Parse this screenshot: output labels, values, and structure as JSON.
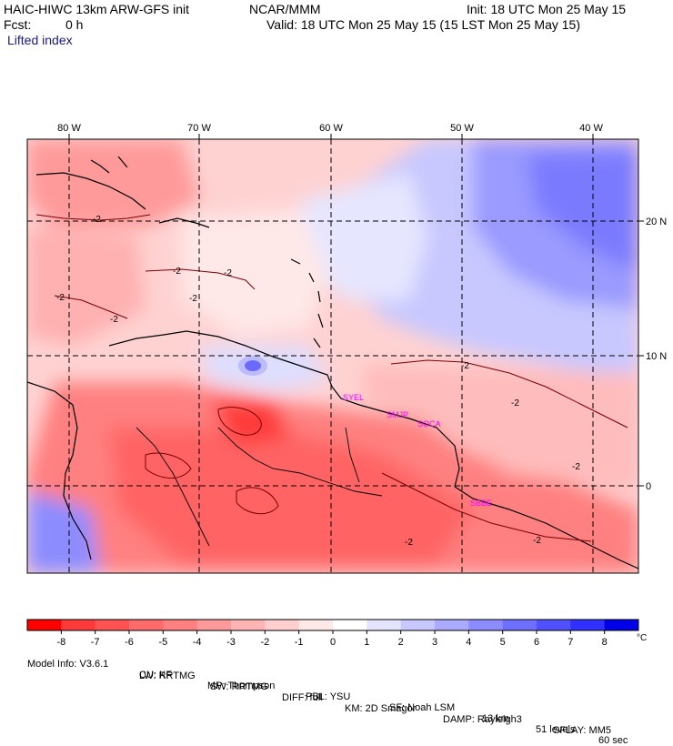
{
  "header": {
    "model_title": "HAIC-HIWC 13km ARW-GFS init",
    "org": "NCAR/MMM",
    "init": "Init: 18 UTC Mon 25 May 15",
    "fcst_label": "Fcst:",
    "fcst_value": "0 h",
    "valid": "Valid: 18 UTC Mon 25 May 15 (15 LST Mon 25 May 15)",
    "field": "Lifted index"
  },
  "map": {
    "lon_labels": [
      "80 W",
      "70 W",
      "60 W",
      "50 W",
      "40 W"
    ],
    "lat_labels": [
      "20 N",
      "10 N",
      "0"
    ],
    "contour_labels": [
      "-2",
      "-2",
      "-2",
      "-2",
      "-2",
      "-2",
      "-2",
      "-2",
      "-2",
      "-2",
      "-2"
    ],
    "stations": [
      "SYEL",
      "SMJP",
      "SOCA",
      "SBBE"
    ]
  },
  "colorbar": {
    "labels": [
      "-8",
      "-7",
      "-6",
      "-5",
      "-4",
      "-3",
      "-2",
      "-1",
      "0",
      "1",
      "2",
      "3",
      "4",
      "5",
      "6",
      "7",
      "8"
    ],
    "unit": "°C",
    "colors": [
      "#ff0000",
      "#ff3a3a",
      "#ff5252",
      "#ff6a6a",
      "#ff8080",
      "#ff9a9a",
      "#ffb4b4",
      "#ffcece",
      "#ffe8e8",
      "#ffffff",
      "#e4e4ff",
      "#c8c8ff",
      "#aaaaff",
      "#8c8cff",
      "#6e6eff",
      "#5050ff",
      "#3030ff",
      "#0000e6"
    ]
  },
  "footer": {
    "line1": [
      "Model Info: V3.6.1",
      "CU: KF",
      "MP: Thompson",
      "PBL: YSU",
      "SF: Noah LSM",
      "13 km",
      "51 levels",
      "60 sec"
    ],
    "line2": [
      "LW: RRTMG",
      "SW: RRTMG",
      "DIFF: full",
      "KM: 2D Smagor",
      "DAMP: Rayleigh3",
      "SFLAY: MM5"
    ]
  }
}
